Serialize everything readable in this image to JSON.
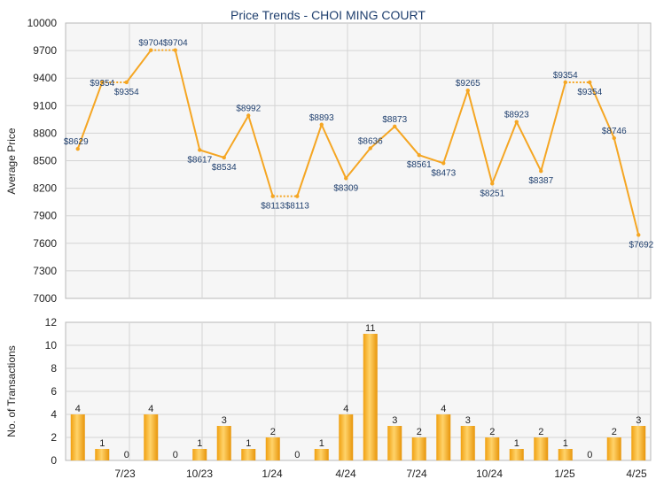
{
  "chart_data": [
    {
      "type": "line",
      "title": "Price Trends - CHOI MING COURT",
      "xlabel": "",
      "ylabel": "Average Price",
      "ylim": [
        7000,
        10000
      ],
      "yticks": [
        7000,
        7300,
        7600,
        7900,
        8200,
        8500,
        8800,
        9100,
        9400,
        9700,
        10000
      ],
      "xticks": [
        "7/23",
        "10/23",
        "1/24",
        "4/24",
        "7/24",
        "10/24",
        "1/25",
        "4/25"
      ],
      "grid": true,
      "color": "#f5a623",
      "series": [
        {
          "values": [
            8629,
            9354,
            9354,
            9704,
            9704,
            8617,
            8534,
            8992,
            8113,
            8113,
            8893,
            8309,
            8636,
            8873,
            8561,
            8473,
            9265,
            8251,
            8923,
            8387,
            9354,
            9354,
            8746,
            7692
          ],
          "labels": [
            "$8629",
            "$9354",
            "$9354",
            "$9704",
            "$9704",
            "$8617",
            "$8534",
            "$8992",
            "$8113",
            "$8113",
            "$8893",
            "$8309",
            "$8636",
            "$8873",
            "$8561",
            "$8473",
            "$9265",
            "$8251",
            "$8923",
            "$8387",
            "$9354",
            "$9354",
            "$8746",
            "$7692"
          ]
        }
      ]
    },
    {
      "type": "bar",
      "title": "",
      "xlabel": "",
      "ylabel": "No. of Transactions",
      "ylim": [
        0,
        12
      ],
      "yticks": [
        0,
        2,
        4,
        6,
        8,
        10,
        12
      ],
      "xticks": [
        "7/23",
        "10/23",
        "1/24",
        "4/24",
        "7/24",
        "10/24",
        "1/25",
        "4/25"
      ],
      "grid": true,
      "color": "#f5a623",
      "values": [
        4,
        1,
        0,
        4,
        0,
        1,
        3,
        1,
        2,
        0,
        1,
        4,
        11,
        3,
        2,
        4,
        3,
        2,
        1,
        2,
        1,
        0,
        2,
        3
      ]
    }
  ]
}
